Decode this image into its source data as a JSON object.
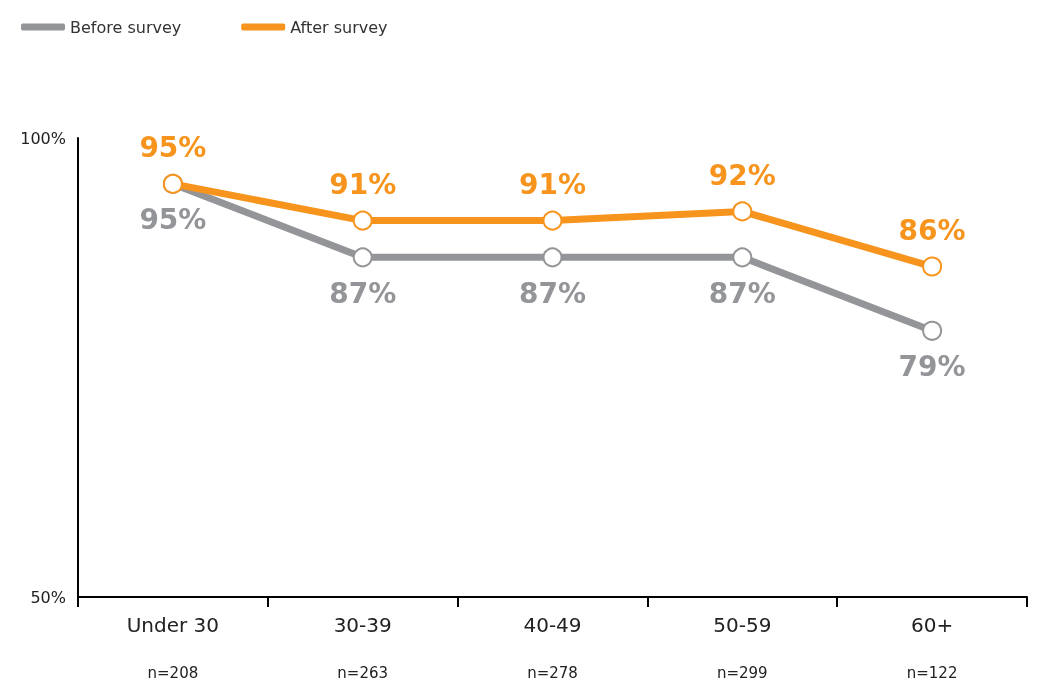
{
  "chart_data": {
    "type": "line",
    "categories": [
      "Under 30",
      "30-39",
      "40-49",
      "50-59",
      "60+"
    ],
    "series": [
      {
        "name": "Before survey",
        "color": "#939598",
        "values": [
          95,
          87,
          87,
          87,
          79
        ],
        "value_labels": [
          "95%",
          "87%",
          "87%",
          "87%",
          "79%"
        ]
      },
      {
        "name": "After survey",
        "color": "#f7941d",
        "values": [
          95,
          91,
          91,
          92,
          86
        ],
        "value_labels": [
          "95%",
          "91%",
          "91%",
          "92%",
          "86%"
        ]
      }
    ],
    "ylim": [
      50,
      100
    ],
    "yticks": [
      {
        "value": 50,
        "label": "50%"
      },
      {
        "value": 100,
        "label": "100%"
      }
    ],
    "annotations": [
      "n=208",
      "n=263",
      "n=278",
      "n=299",
      "n=122"
    ],
    "marker": "circle",
    "line_style": "solid",
    "grid": false,
    "legend": "top left"
  }
}
